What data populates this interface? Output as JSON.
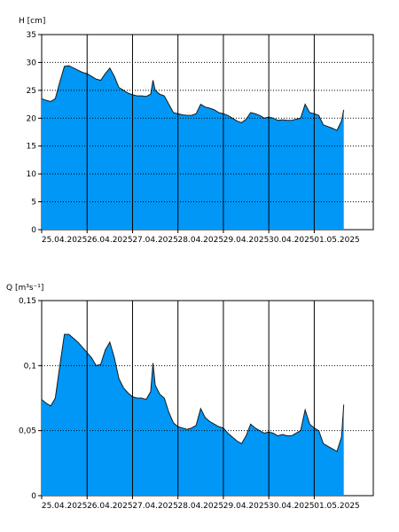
{
  "chart_data": [
    {
      "type": "area",
      "ylabel": "H [cm]",
      "ylim": [
        0,
        35
      ],
      "y_ticks": [
        "0",
        "5",
        "10",
        "15",
        "20",
        "25",
        "30",
        "35"
      ],
      "x_labels": [
        "25.04.2025",
        "26.04.2025",
        "27.04.2025",
        "28.04.2025",
        "29.04.2025",
        "30.04.2025",
        "01.05.2025"
      ],
      "x_range_days": [
        0,
        7.3
      ],
      "grid": "dotted horizontal at ticks, solid vertical at day boundaries",
      "fill_color": "#0097f6",
      "outline_color": "#1a1a1a",
      "series": [
        {
          "x": [
            0,
            0.1,
            0.2,
            0.3,
            0.4,
            0.5,
            0.6,
            0.7,
            0.8,
            0.9,
            1.0,
            1.1,
            1.2,
            1.3,
            1.4,
            1.5,
            1.6,
            1.7,
            1.8,
            1.9,
            2.0,
            2.1,
            2.2,
            2.3,
            2.4,
            2.45,
            2.5,
            2.6,
            2.7,
            2.8,
            2.9,
            3.0,
            3.1,
            3.2,
            3.3,
            3.4,
            3.5,
            3.6,
            3.7,
            3.8,
            3.9,
            4.0,
            4.1,
            4.2,
            4.3,
            4.4,
            4.5,
            4.6,
            4.7,
            4.8,
            4.9,
            5.0,
            5.1,
            5.2,
            5.3,
            5.4,
            5.5,
            5.6,
            5.7,
            5.8,
            5.9,
            6.0,
            6.1,
            6.2,
            6.3,
            6.4,
            6.5,
            6.6,
            6.65
          ],
          "values": [
            23.5,
            23.2,
            23.0,
            23.5,
            26.5,
            29.3,
            29.4,
            29.0,
            28.6,
            28.2,
            28.0,
            27.5,
            27.0,
            26.8,
            28.0,
            29.0,
            27.5,
            25.5,
            25.0,
            24.5,
            24.2,
            24.0,
            24.0,
            23.9,
            24.3,
            26.8,
            25.0,
            24.3,
            24.0,
            22.5,
            21.0,
            20.8,
            20.6,
            20.5,
            20.5,
            20.8,
            22.5,
            22.0,
            21.8,
            21.5,
            21.0,
            20.8,
            20.5,
            20.0,
            19.5,
            19.2,
            19.8,
            21.0,
            20.8,
            20.5,
            20.0,
            20.2,
            20.0,
            19.6,
            19.7,
            19.6,
            19.6,
            19.8,
            20.0,
            22.5,
            21.0,
            20.8,
            20.5,
            18.8,
            18.5,
            18.2,
            17.8,
            19.5,
            21.5
          ]
        }
      ]
    },
    {
      "type": "area",
      "ylabel": "Q [m³s⁻¹]",
      "ylim": [
        0,
        0.15
      ],
      "y_ticks": [
        "0",
        "0,05",
        "0,1",
        "0,15"
      ],
      "x_labels": [
        "25.04.2025",
        "26.04.2025",
        "27.04.2025",
        "28.04.2025",
        "29.04.2025",
        "30.04.2025",
        "01.05.2025"
      ],
      "x_range_days": [
        0,
        7.3
      ],
      "grid": "dotted horizontal at ticks, solid vertical at day boundaries",
      "fill_color": "#0097f6",
      "outline_color": "#1a1a1a",
      "series": [
        {
          "x": [
            0,
            0.1,
            0.2,
            0.3,
            0.4,
            0.5,
            0.6,
            0.7,
            0.8,
            0.9,
            1.0,
            1.1,
            1.2,
            1.3,
            1.4,
            1.5,
            1.6,
            1.7,
            1.8,
            1.9,
            2.0,
            2.1,
            2.2,
            2.3,
            2.4,
            2.45,
            2.5,
            2.6,
            2.7,
            2.8,
            2.9,
            3.0,
            3.1,
            3.2,
            3.3,
            3.4,
            3.5,
            3.6,
            3.7,
            3.8,
            3.9,
            4.0,
            4.1,
            4.2,
            4.3,
            4.4,
            4.5,
            4.6,
            4.7,
            4.8,
            4.9,
            5.0,
            5.1,
            5.2,
            5.3,
            5.4,
            5.5,
            5.6,
            5.7,
            5.8,
            5.9,
            6.0,
            6.1,
            6.2,
            6.3,
            6.4,
            6.5,
            6.6,
            6.65
          ],
          "values": [
            0.074,
            0.071,
            0.069,
            0.075,
            0.1,
            0.124,
            0.124,
            0.121,
            0.118,
            0.114,
            0.11,
            0.106,
            0.1,
            0.101,
            0.112,
            0.118,
            0.106,
            0.09,
            0.083,
            0.079,
            0.076,
            0.075,
            0.075,
            0.074,
            0.08,
            0.102,
            0.085,
            0.078,
            0.075,
            0.064,
            0.056,
            0.053,
            0.052,
            0.051,
            0.052,
            0.054,
            0.067,
            0.06,
            0.057,
            0.055,
            0.053,
            0.052,
            0.048,
            0.045,
            0.042,
            0.04,
            0.046,
            0.055,
            0.052,
            0.05,
            0.048,
            0.049,
            0.048,
            0.046,
            0.047,
            0.046,
            0.046,
            0.048,
            0.05,
            0.066,
            0.055,
            0.052,
            0.05,
            0.04,
            0.038,
            0.036,
            0.034,
            0.045,
            0.07
          ]
        }
      ]
    }
  ]
}
